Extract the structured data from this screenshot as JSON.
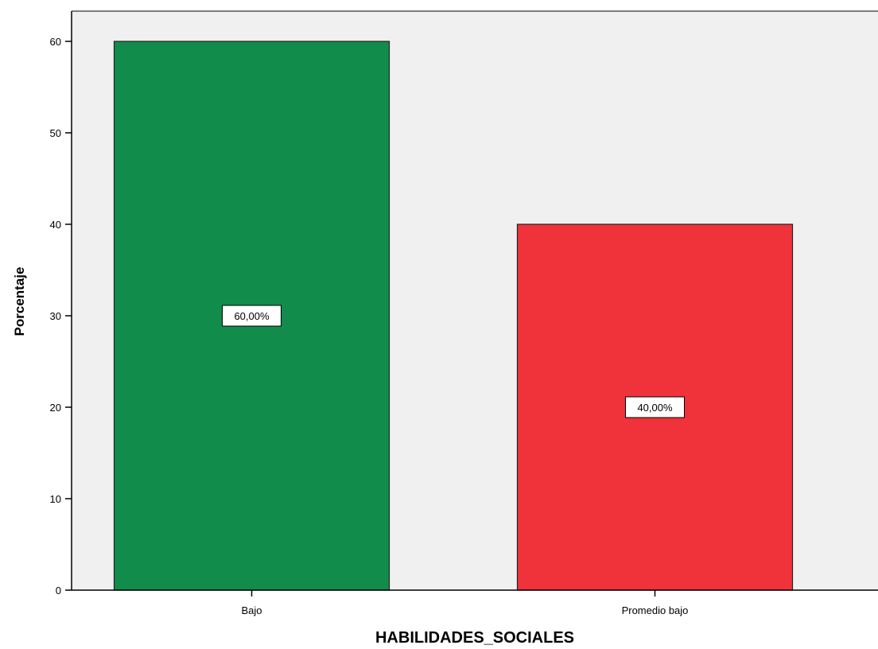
{
  "chart_data": {
    "type": "bar",
    "categories": [
      "Bajo",
      "Promedio bajo"
    ],
    "values": [
      60,
      40
    ],
    "data_labels": [
      "60,00%",
      "40,00%"
    ],
    "colors": [
      "#128c4a",
      "#f0323a"
    ],
    "xlabel": "HABILIDADES_SOCIALES",
    "ylabel": "Porcentaje",
    "ylim": [
      0,
      60
    ],
    "yticks": [
      "0",
      "10",
      "20",
      "30",
      "40",
      "50",
      "60"
    ],
    "plot_background": "#f0f0f0",
    "grid": false
  }
}
